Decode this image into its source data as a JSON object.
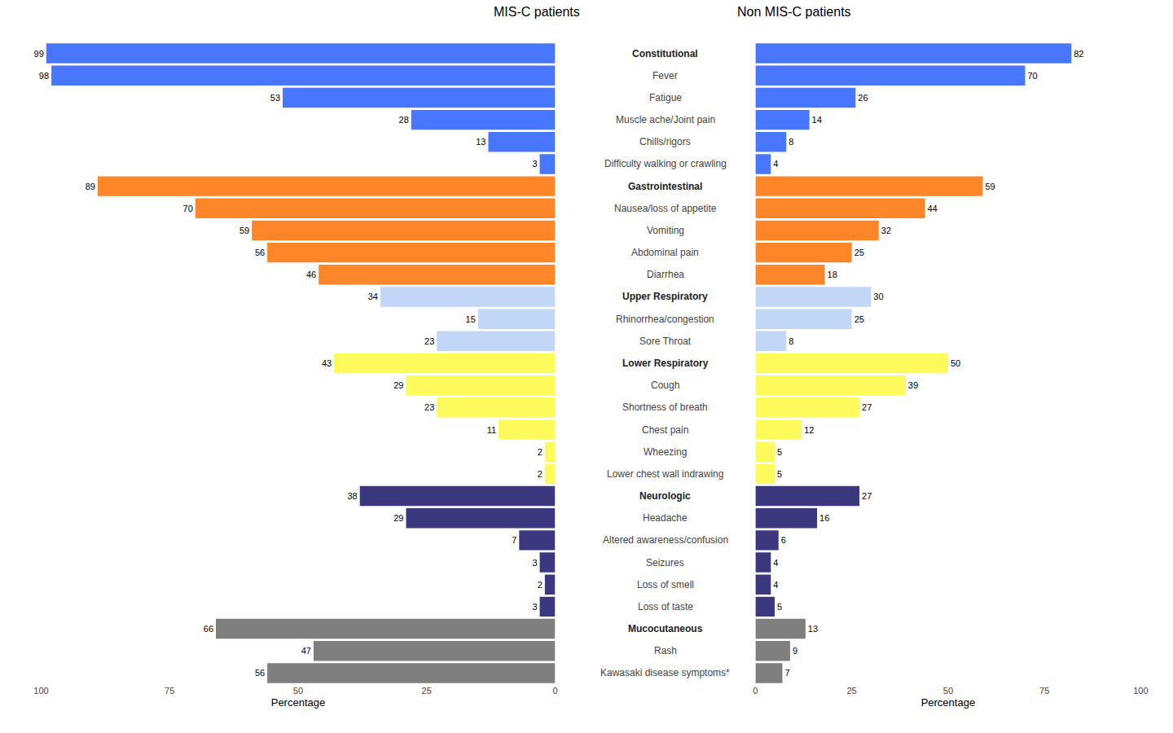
{
  "chart_data": [
    {
      "type": "bar",
      "title": "MIS-C patients",
      "x_label": "Percentage",
      "orientation": "horizontal",
      "data_labels": true,
      "grid": false,
      "tick_labels": "x",
      "categories": [
        "Constitutional",
        "Fever",
        "Fatigue",
        "Muscle ache/Joint pain",
        "Chills/rigors",
        "Difficulty walking or crawling",
        "Gastrointestinal",
        "Nausea/loss of appetite",
        "Vomiting",
        "Abdominal pain",
        "Diarrhea",
        "Upper Respiratory",
        "Rhinorrhea/congestion",
        "Sore Throat",
        "Lower Respiratory",
        "Cough",
        "Shortness of breath",
        "Chest pain",
        "Wheezing",
        "Lower chest wall indrawing",
        "Neurologic",
        "Headache",
        "Altered awareness/confusion",
        "Seizures",
        "Loss of smell",
        "Loss of taste",
        "Mucocutaneous",
        "Rash",
        "Kawasaki disease symptoms*"
      ],
      "values": [
        99,
        98,
        53,
        28,
        13,
        3,
        89,
        70,
        59,
        56,
        46,
        34,
        15,
        23,
        43,
        29,
        23,
        11,
        2,
        2,
        38,
        29,
        7,
        3,
        2,
        3,
        66,
        47,
        56
      ],
      "colors": [
        "#4876ff",
        "#4876ff",
        "#4876ff",
        "#4876ff",
        "#4876ff",
        "#4876ff",
        "#fd8629",
        "#fd8629",
        "#fd8629",
        "#fd8629",
        "#fd8629",
        "#c2d6f8",
        "#c2d6f8",
        "#c2d6f8",
        "#fdfb5c",
        "#fdfb5c",
        "#fdfb5c",
        "#fdfb5c",
        "#fdfb5c",
        "#fdfb5c",
        "#3c3880",
        "#3c3880",
        "#3c3880",
        "#3c3880",
        "#3c3880",
        "#3c3880",
        "#7f7f7f",
        "#7f7f7f",
        "#7f7f7f"
      ],
      "xlim": [
        100,
        0
      ],
      "xticks": [
        0,
        25,
        50,
        75,
        100
      ]
    },
    {
      "type": "bar",
      "title": "Non MIS-C patients",
      "x_label": "Percentage",
      "orientation": "horizontal",
      "data_labels": true,
      "grid": false,
      "tick_labels": "x",
      "categories": [
        "Constitutional",
        "Fever",
        "Fatigue",
        "Muscle ache/Joint pain",
        "Chills/rigors",
        "Difficulty walking or crawling",
        "Gastrointestinal",
        "Nausea/loss of appetite",
        "Vomiting",
        "Abdominal pain",
        "Diarrhea",
        "Upper Respiratory",
        "Rhinorrhea/congestion",
        "Sore Throat",
        "Lower Respiratory",
        "Cough",
        "Shortness of breath",
        "Chest pain",
        "Wheezing",
        "Lower chest wall indrawing",
        "Neurologic",
        "Headache",
        "Altered awareness/confusion",
        "Seizures",
        "Loss of smell",
        "Loss of taste",
        "Mucocutaneous",
        "Rash",
        "Kawasaki disease symptoms*"
      ],
      "values": [
        82,
        70,
        26,
        14,
        8,
        4,
        59,
        44,
        32,
        25,
        18,
        30,
        25,
        8,
        50,
        39,
        27,
        12,
        5,
        5,
        27,
        16,
        6,
        4,
        4,
        5,
        13,
        9,
        7
      ],
      "colors": [
        "#4876ff",
        "#4876ff",
        "#4876ff",
        "#4876ff",
        "#4876ff",
        "#4876ff",
        "#fd8629",
        "#fd8629",
        "#fd8629",
        "#fd8629",
        "#fd8629",
        "#c2d6f8",
        "#c2d6f8",
        "#c2d6f8",
        "#fdfb5c",
        "#fdfb5c",
        "#fdfb5c",
        "#fdfb5c",
        "#fdfb5c",
        "#fdfb5c",
        "#3c3880",
        "#3c3880",
        "#3c3880",
        "#3c3880",
        "#3c3880",
        "#3c3880",
        "#7f7f7f",
        "#7f7f7f",
        "#7f7f7f"
      ],
      "xlim": [
        0,
        100
      ],
      "xticks": [
        0,
        25,
        50,
        75,
        100
      ]
    }
  ]
}
